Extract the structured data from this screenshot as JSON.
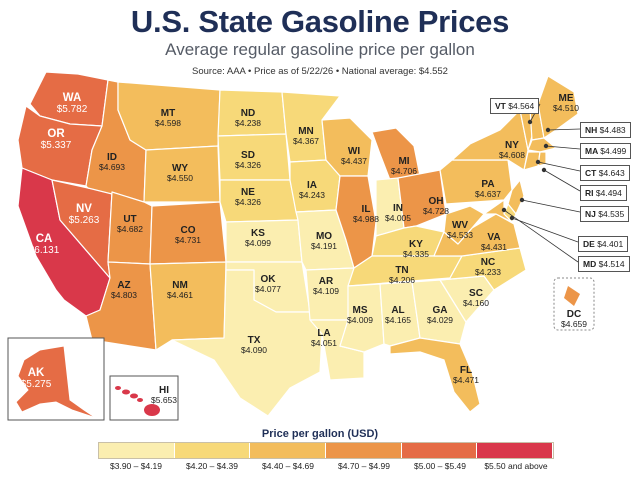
{
  "header": {
    "title": "U.S. State Gasoline Prices",
    "subtitle": "Average regular gasoline price per gallon",
    "source": "Source: AAA  •  Price as of 5/22/26  •  National average: $4.552"
  },
  "legend": {
    "title": "Price per gallon (USD)",
    "bins": [
      {
        "label": "$3.90 – $4.19",
        "color": "#fbeeb0"
      },
      {
        "label": "$4.20 – $4.39",
        "color": "#f7d979"
      },
      {
        "label": "$4.40 – $4.69",
        "color": "#f3bd5c"
      },
      {
        "label": "$4.70 – $4.99",
        "color": "#ec9548"
      },
      {
        "label": "$5.00 – $5.49",
        "color": "#e56c45"
      },
      {
        "label": "$5.50 and above",
        "color": "#d9384a"
      }
    ]
  },
  "states": {
    "WA": {
      "code": "WA",
      "price": "$5.782"
    },
    "OR": {
      "code": "OR",
      "price": "$5.337"
    },
    "CA": {
      "code": "CA",
      "price": "$6.131"
    },
    "NV": {
      "code": "NV",
      "price": "$5.263"
    },
    "ID": {
      "code": "ID",
      "price": "$4.693"
    },
    "MT": {
      "code": "MT",
      "price": "$4.598"
    },
    "WY": {
      "code": "WY",
      "price": "$4.550"
    },
    "UT": {
      "code": "UT",
      "price": "$4.682"
    },
    "CO": {
      "code": "CO",
      "price": "$4.731"
    },
    "AZ": {
      "code": "AZ",
      "price": "$4.803"
    },
    "NM": {
      "code": "NM",
      "price": "$4.461"
    },
    "ND": {
      "code": "ND",
      "price": "$4.238"
    },
    "SD": {
      "code": "SD",
      "price": "$4.326"
    },
    "NE": {
      "code": "NE",
      "price": "$4.326"
    },
    "KS": {
      "code": "KS",
      "price": "$4.099"
    },
    "OK": {
      "code": "OK",
      "price": "$4.077"
    },
    "TX": {
      "code": "TX",
      "price": "$4.090"
    },
    "MN": {
      "code": "MN",
      "price": "$4.367"
    },
    "IA": {
      "code": "IA",
      "price": "$4.243"
    },
    "MO": {
      "code": "MO",
      "price": "$4.191"
    },
    "AR": {
      "code": "AR",
      "price": "$4.109"
    },
    "LA": {
      "code": "LA",
      "price": "$4.051"
    },
    "WI": {
      "code": "WI",
      "price": "$4.437"
    },
    "IL": {
      "code": "IL",
      "price": "$4.988"
    },
    "MI": {
      "code": "MI",
      "price": "$4.706"
    },
    "IN": {
      "code": "IN",
      "price": "$4.005"
    },
    "OH": {
      "code": "OH",
      "price": "$4.728"
    },
    "KY": {
      "code": "KY",
      "price": "$4.335"
    },
    "TN": {
      "code": "TN",
      "price": "$4.206"
    },
    "MS": {
      "code": "MS",
      "price": "$4.009"
    },
    "AL": {
      "code": "AL",
      "price": "$4.165"
    },
    "GA": {
      "code": "GA",
      "price": "$4.029"
    },
    "FL": {
      "code": "FL",
      "price": "$4.471"
    },
    "SC": {
      "code": "SC",
      "price": "$4.160"
    },
    "NC": {
      "code": "NC",
      "price": "$4.233"
    },
    "VA": {
      "code": "VA",
      "price": "$4.431"
    },
    "WV": {
      "code": "WV",
      "price": "$4.533"
    },
    "PA": {
      "code": "PA",
      "price": "$4.637"
    },
    "NY": {
      "code": "NY",
      "price": "$4.608"
    },
    "ME": {
      "code": "ME",
      "price": "$4.510"
    },
    "AK": {
      "code": "AK",
      "price": "$5.275"
    },
    "HI": {
      "code": "HI",
      "price": "$5.653"
    },
    "DC": {
      "code": "DC",
      "price": "$4.659"
    }
  },
  "callouts": {
    "VT": {
      "code": "VT",
      "price": "$4.564"
    },
    "NH": {
      "code": "NH",
      "price": "$4.483"
    },
    "MA": {
      "code": "MA",
      "price": "$4.499"
    },
    "CT": {
      "code": "CT",
      "price": "$4.643"
    },
    "RI": {
      "code": "RI",
      "price": "$4.494"
    },
    "NJ": {
      "code": "NJ",
      "price": "$4.535"
    },
    "DE": {
      "code": "DE",
      "price": "$4.401"
    },
    "MD": {
      "code": "MD",
      "price": "$4.514"
    }
  }
}
